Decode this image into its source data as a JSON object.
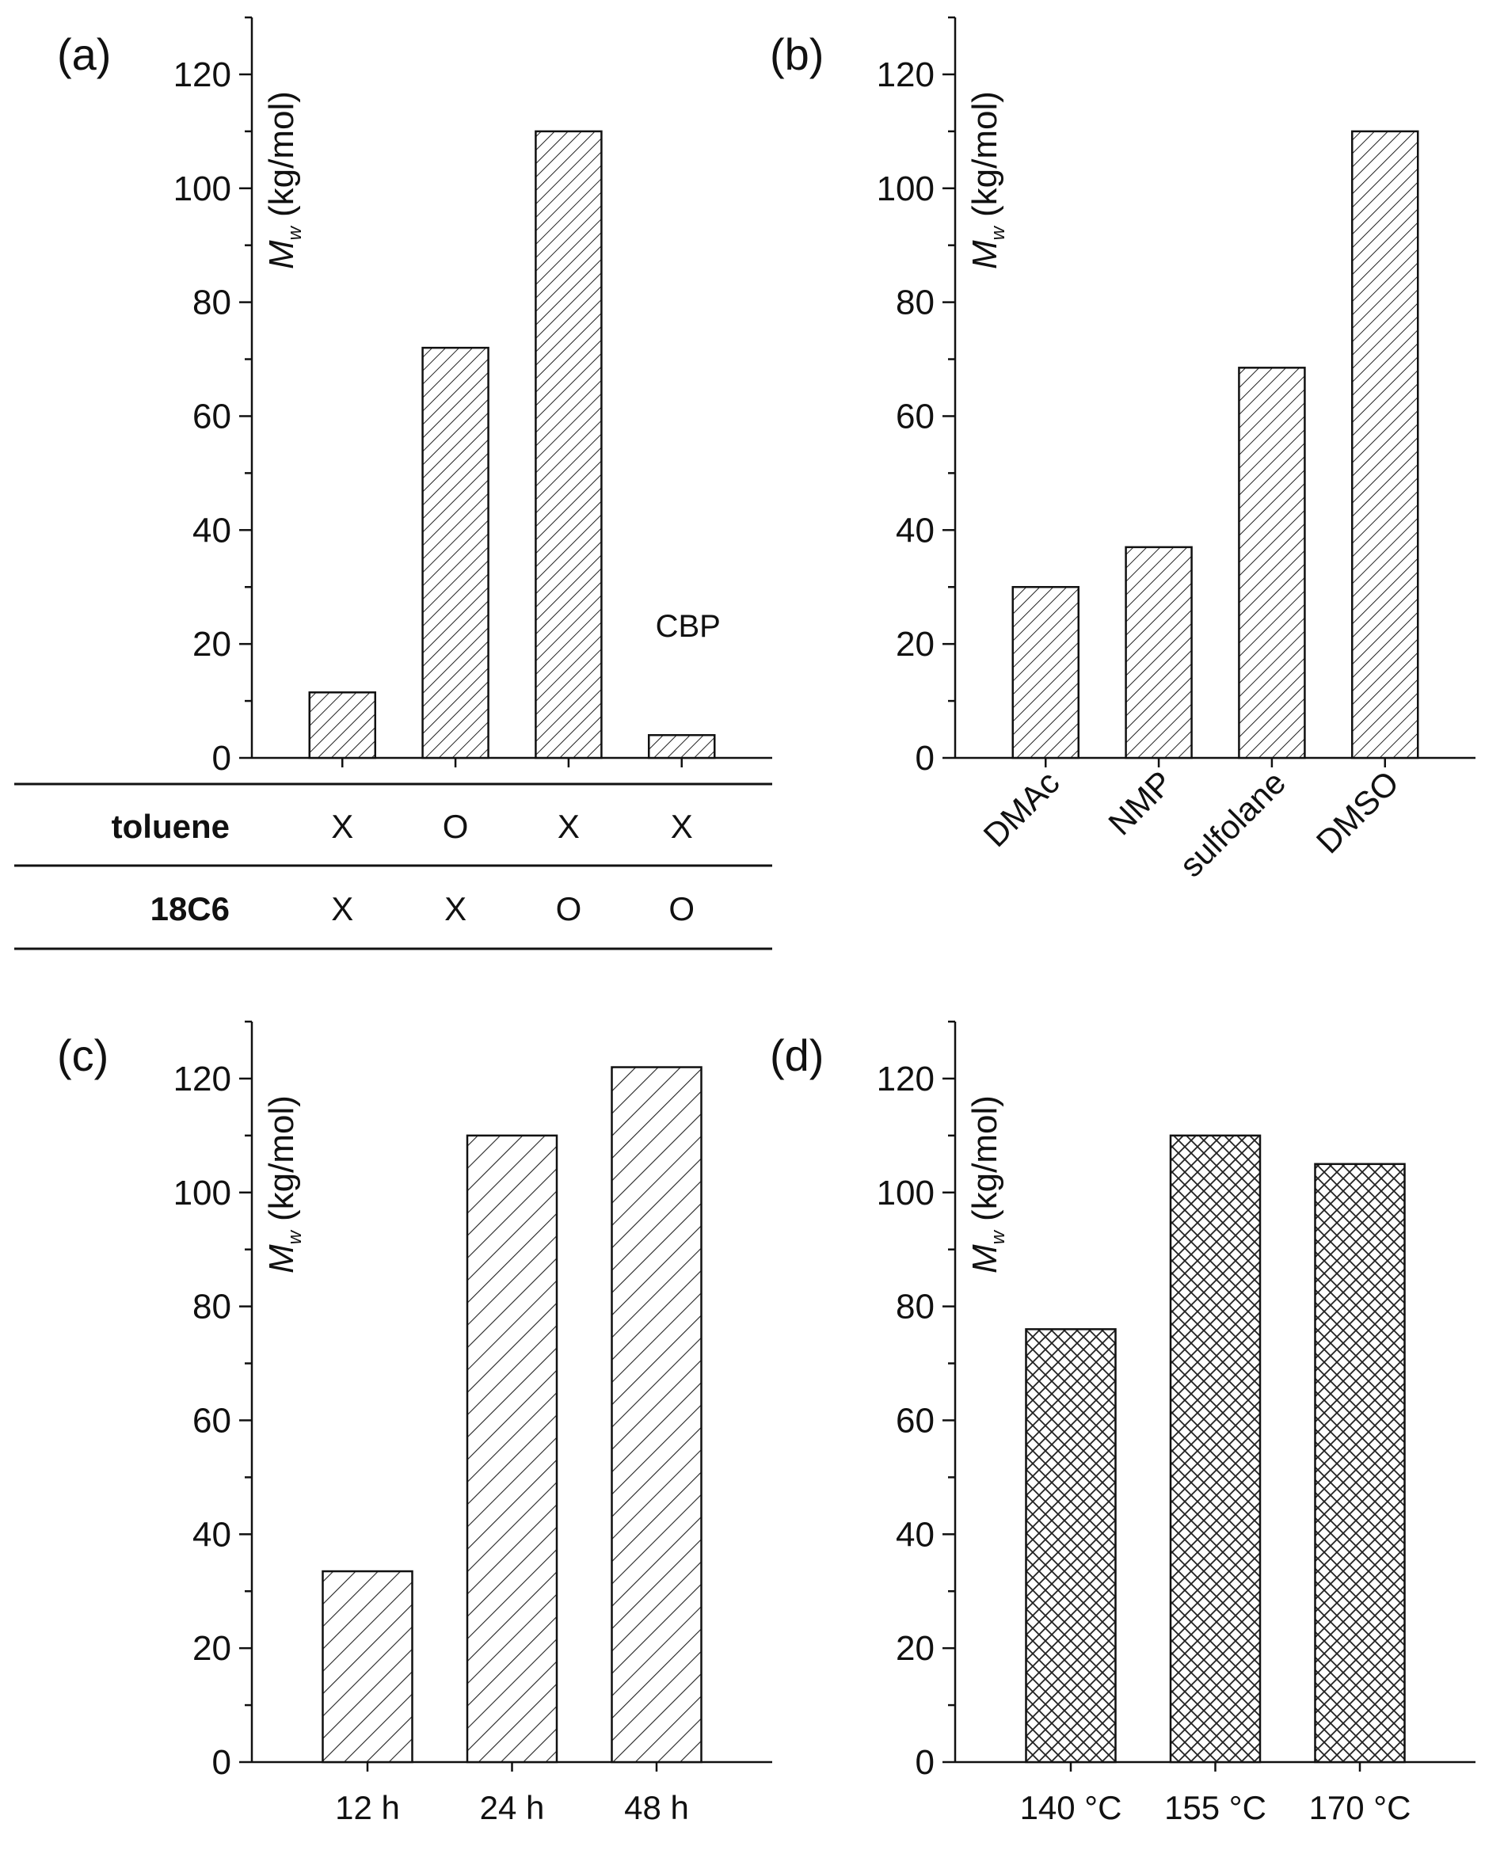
{
  "chart_data": [
    {
      "panel": "(a)",
      "type": "bar",
      "ylabel": "M_w (kg/mol)",
      "ylabel_main": "M",
      "ylabel_sub": "w",
      "ylabel_unit": "(kg/mol)",
      "ylim": [
        0,
        130
      ],
      "yticks": [
        0,
        20,
        40,
        60,
        80,
        100,
        120
      ],
      "categories": [
        "",
        "",
        "",
        ""
      ],
      "values": [
        11.5,
        72,
        110,
        4
      ],
      "pattern": "hatch-fine",
      "annotations": [
        {
          "text": "CBP",
          "bar_index": 3
        }
      ],
      "table": {
        "rows": [
          {
            "label": "toluene",
            "cells": [
              "X",
              "O",
              "X",
              "X"
            ]
          },
          {
            "label": "18C6",
            "cells": [
              "X",
              "X",
              "O",
              "O"
            ]
          }
        ]
      }
    },
    {
      "panel": "(b)",
      "type": "bar",
      "ylabel": "M_w (kg/mol)",
      "ylabel_main": "M",
      "ylabel_sub": "w",
      "ylabel_unit": "(kg/mol)",
      "ylim": [
        0,
        130
      ],
      "yticks": [
        0,
        20,
        40,
        60,
        80,
        100,
        120
      ],
      "categories": [
        "DMAc",
        "NMP",
        "sulfolane",
        "DMSO"
      ],
      "rotated_labels": true,
      "values": [
        30,
        37,
        68.5,
        110
      ],
      "pattern": "hatch-fine"
    },
    {
      "panel": "(c)",
      "type": "bar",
      "ylabel": "M_w (kg/mol)",
      "ylabel_main": "M",
      "ylabel_sub": "w",
      "ylabel_unit": "(kg/mol)",
      "ylim": [
        0,
        130
      ],
      "yticks": [
        0,
        20,
        40,
        60,
        80,
        100,
        120
      ],
      "categories": [
        "12 h",
        "24 h",
        "48 h"
      ],
      "values": [
        33.5,
        110,
        122
      ],
      "pattern": "hatch-wide"
    },
    {
      "panel": "(d)",
      "type": "bar",
      "ylabel": "M_w (kg/mol)",
      "ylabel_main": "M",
      "ylabel_sub": "w",
      "ylabel_unit": "(kg/mol)",
      "ylim": [
        0,
        130
      ],
      "yticks": [
        0,
        20,
        40,
        60,
        80,
        100,
        120
      ],
      "categories": [
        "140 °C",
        "155 °C",
        "170 °C"
      ],
      "values": [
        76,
        110,
        105
      ],
      "pattern": "crosshatch"
    }
  ]
}
